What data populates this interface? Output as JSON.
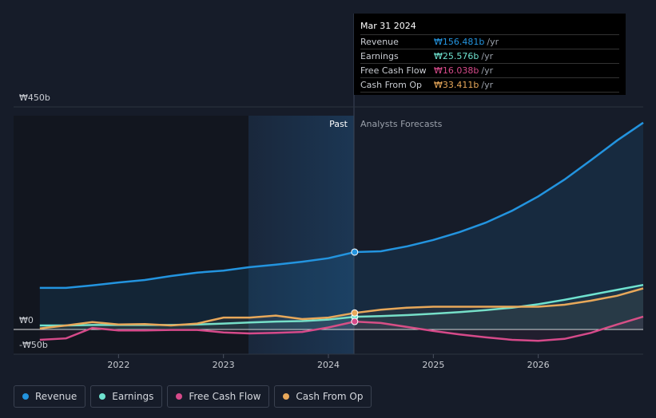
{
  "chart_data": {
    "type": "line",
    "x": [
      2021.25,
      2021.5,
      2021.75,
      2022,
      2022.25,
      2022.5,
      2022.75,
      2023,
      2023.25,
      2023.5,
      2023.75,
      2024,
      2024.25,
      2024.5,
      2024.75,
      2025,
      2025.25,
      2025.5,
      2025.75,
      2026,
      2026.25,
      2026.5,
      2026.75,
      2027
    ],
    "series": [
      {
        "name": "Revenue",
        "color": "#2394df",
        "values": [
          84,
          84,
          89,
          95,
          100,
          108,
          115,
          119,
          126,
          131,
          137,
          144,
          156.481,
          158,
          168,
          181,
          197,
          216,
          240,
          269,
          303,
          342,
          382,
          418
        ]
      },
      {
        "name": "Earnings",
        "color": "#6fe3d0",
        "values": [
          8,
          8,
          9,
          9,
          9,
          9,
          10,
          12,
          14,
          16,
          17,
          20,
          25.576,
          27,
          29,
          32,
          35,
          39,
          44,
          51,
          60,
          70,
          80,
          90
        ]
      },
      {
        "name": "Free Cash Flow",
        "color": "#d64a8a",
        "values": [
          -21,
          -18,
          3,
          -2,
          -2,
          -1,
          -1,
          -6,
          -8,
          -7,
          -5,
          4,
          16.038,
          13,
          5,
          -3,
          -10,
          -16,
          -21,
          -23,
          -19,
          -7,
          10,
          26
        ]
      },
      {
        "name": "Cash From Op",
        "color": "#e8a85a",
        "values": [
          2,
          8,
          15,
          10,
          11,
          8,
          12,
          24,
          24,
          28,
          21,
          24,
          33.411,
          40,
          44,
          46,
          46,
          46,
          46,
          46,
          50,
          58,
          68,
          83
        ]
      }
    ],
    "xlim": [
      2021,
      2027
    ],
    "xticks": [
      2022,
      2023,
      2024,
      2025,
      2026
    ],
    "ylim": [
      -50,
      450
    ],
    "yticks": [
      {
        "value": -50,
        "label": "-₩50b"
      },
      {
        "value": 0,
        "label": "₩0"
      },
      {
        "value": 450,
        "label": "₩450b"
      }
    ],
    "past_label": "Past",
    "forecast_label": "Analysts Forecasts",
    "tooltip": {
      "date": "Mar 31 2024",
      "unit": "/yr",
      "rows": [
        {
          "label": "Revenue",
          "value": "₩156.481b"
        },
        {
          "label": "Earnings",
          "value": "₩25.576b"
        },
        {
          "label": "Free Cash Flow",
          "value": "₩16.038b"
        },
        {
          "label": "Cash From Op",
          "value": "₩33.411b"
        }
      ]
    }
  }
}
